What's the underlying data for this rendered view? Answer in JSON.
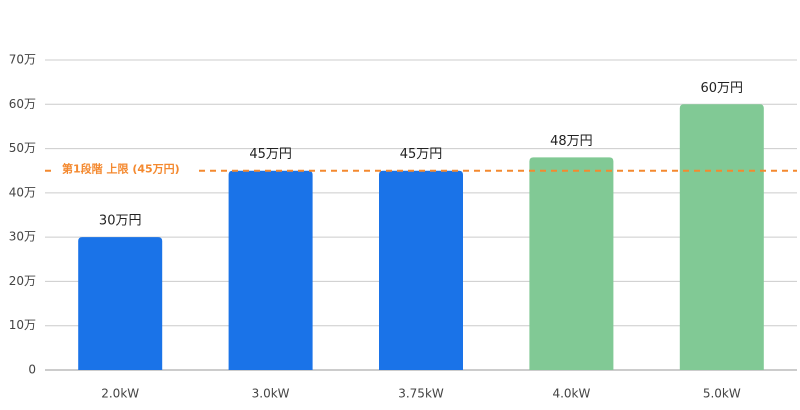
{
  "chart_data": {
    "type": "bar",
    "categories": [
      "2.0kW",
      "3.0kW",
      "3.75kW",
      "4.0kW",
      "5.0kW"
    ],
    "values": [
      30,
      45,
      45,
      48,
      60
    ],
    "value_labels": [
      "30万円",
      "45万円",
      "45万円",
      "48万円",
      "60万円"
    ],
    "colors": [
      "#1a73e8",
      "#1a73e8",
      "#1a73e8",
      "#81c995",
      "#81c995"
    ],
    "ylim": [
      0,
      70
    ],
    "yticks": [
      0,
      {
        "value": 10,
        "label": "10万"
      },
      {
        "value": 20,
        "label": "20万"
      },
      {
        "value": 30,
        "label": "30万"
      },
      {
        "value": 40,
        "label": "40万"
      },
      {
        "value": 50,
        "label": "50万"
      },
      {
        "value": 60,
        "label": "60万"
      },
      {
        "value": 70,
        "label": "70万"
      }
    ],
    "grid": true,
    "reference_line": {
      "value": 45,
      "label": "第1段階 上限 (45万円)",
      "color": "#f4892f"
    }
  }
}
